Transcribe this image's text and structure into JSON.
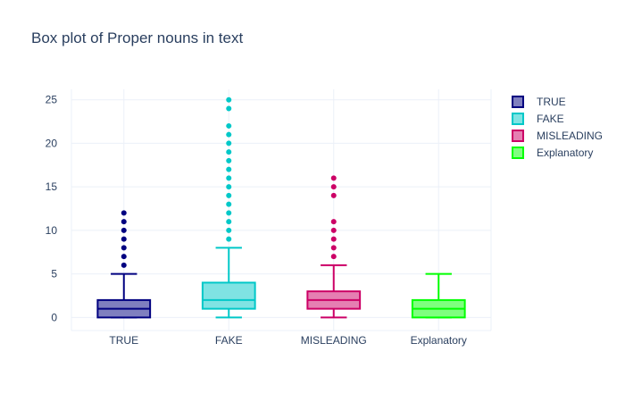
{
  "title": "Box plot of Proper nouns in text",
  "chart_data": {
    "type": "box",
    "title": "Box plot of Proper nouns in text",
    "xlabel": "",
    "ylabel": "",
    "categories": [
      "TRUE",
      "FAKE",
      "MISLEADING",
      "Explanatory"
    ],
    "ylim": [
      -1.5,
      26.2
    ],
    "y_ticks": [
      0,
      5,
      10,
      15,
      20,
      25
    ],
    "grid": true,
    "legend_position": "top-right",
    "series": [
      {
        "name": "TRUE",
        "color": "#000080",
        "fill": "#7f7fbf",
        "min": 0,
        "q1": 0,
        "median": 1,
        "q3": 2,
        "max": 5,
        "outliers": [
          6,
          7,
          8,
          9,
          10,
          11,
          12
        ]
      },
      {
        "name": "FAKE",
        "color": "#00c8c8",
        "fill": "#7fe3e3",
        "min": 0,
        "q1": 1,
        "median": 2,
        "q3": 4,
        "max": 8,
        "outliers": [
          9,
          10,
          11,
          12,
          13,
          14,
          15,
          16,
          17,
          18,
          19,
          20,
          21,
          22,
          24,
          25
        ]
      },
      {
        "name": "MISLEADING",
        "color": "#cc0066",
        "fill": "#e57fb2",
        "min": 0,
        "q1": 1,
        "median": 2,
        "q3": 3,
        "max": 6,
        "outliers": [
          7,
          8,
          9,
          10,
          11,
          14,
          15,
          16
        ]
      },
      {
        "name": "Explanatory",
        "color": "#00ff00",
        "fill": "#7fff7f",
        "min": 0,
        "q1": 0,
        "median": 1,
        "q3": 2,
        "max": 5,
        "outliers": []
      }
    ]
  }
}
